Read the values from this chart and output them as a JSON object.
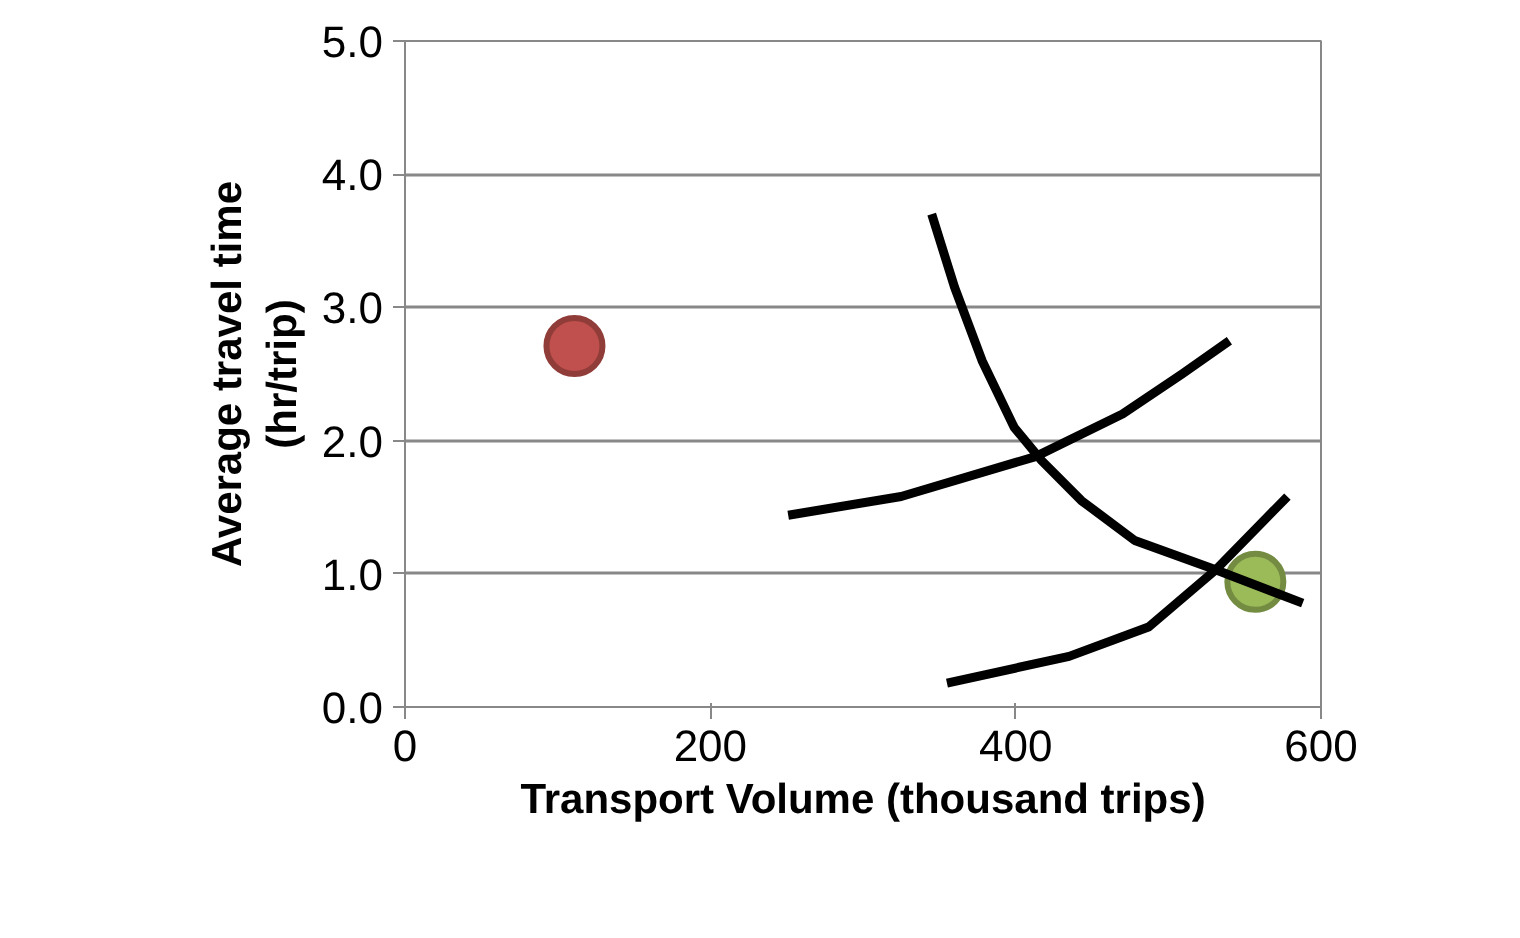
{
  "chart_data": {
    "type": "scatter",
    "xlabel": "Transport Volume (thousand trips)",
    "ylabel": "Average travel time\n(hr/trip)",
    "xlim": [
      0,
      600
    ],
    "ylim": [
      0,
      5
    ],
    "xticks": [
      0,
      200,
      400,
      600
    ],
    "yticks": [
      {
        "value": 0,
        "label": "0.0"
      },
      {
        "value": 1,
        "label": "1.0"
      },
      {
        "value": 2,
        "label": "2.0"
      },
      {
        "value": 3,
        "label": "3.0"
      },
      {
        "value": 4,
        "label": "4.0"
      },
      {
        "value": 5,
        "label": "5.0"
      }
    ],
    "grid": "y",
    "series": [
      {
        "marker": "circle",
        "color": "#c0504d",
        "x": [
          111
        ],
        "values": [
          2.71
        ]
      },
      {
        "marker": "circle",
        "color": "#9bbb59",
        "x": [
          557
        ],
        "values": [
          0.94
        ]
      },
      {
        "type": "line",
        "marker": "none",
        "line_style": "solid",
        "color": "#000000",
        "x": [
          345,
          360,
          378,
          399,
          417,
          443,
          478,
          531,
          588
        ],
        "values": [
          3.7,
          3.15,
          2.6,
          2.1,
          1.85,
          1.55,
          1.25,
          1.03,
          0.78
        ]
      },
      {
        "type": "line",
        "marker": "none",
        "line_style": "solid",
        "color": "#000000",
        "x": [
          251,
          325,
          413,
          470,
          509,
          540
        ],
        "values": [
          1.44,
          1.58,
          1.88,
          2.2,
          2.5,
          2.75
        ]
      },
      {
        "type": "line",
        "marker": "none",
        "line_style": "solid",
        "color": "#000000",
        "x": [
          355,
          435,
          487,
          531,
          578
        ],
        "values": [
          0.18,
          0.38,
          0.6,
          1.03,
          1.58
        ]
      }
    ]
  }
}
